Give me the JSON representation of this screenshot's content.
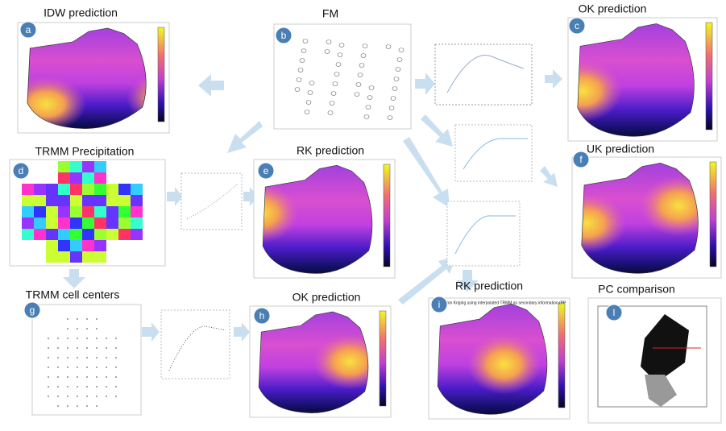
{
  "panels": [
    {
      "letter": "a",
      "title": "IDW prediction"
    },
    {
      "letter": "b",
      "title": "FM"
    },
    {
      "letter": "c",
      "title": "OK prediction"
    },
    {
      "letter": "d",
      "title": "TRMM Precipitation"
    },
    {
      "letter": "e",
      "title": "RK prediction"
    },
    {
      "letter": "f",
      "title": "UK prediction"
    },
    {
      "letter": "g",
      "title": "TRMM cell centers"
    },
    {
      "letter": "h",
      "title": "OK prediction"
    },
    {
      "letter": "i",
      "title": "RK prediction",
      "subtitle": "Regression Kriging using interpolated TRMM as secondary information (PP"
    },
    {
      "letter": "l",
      "title": "PC comparison"
    }
  ]
}
